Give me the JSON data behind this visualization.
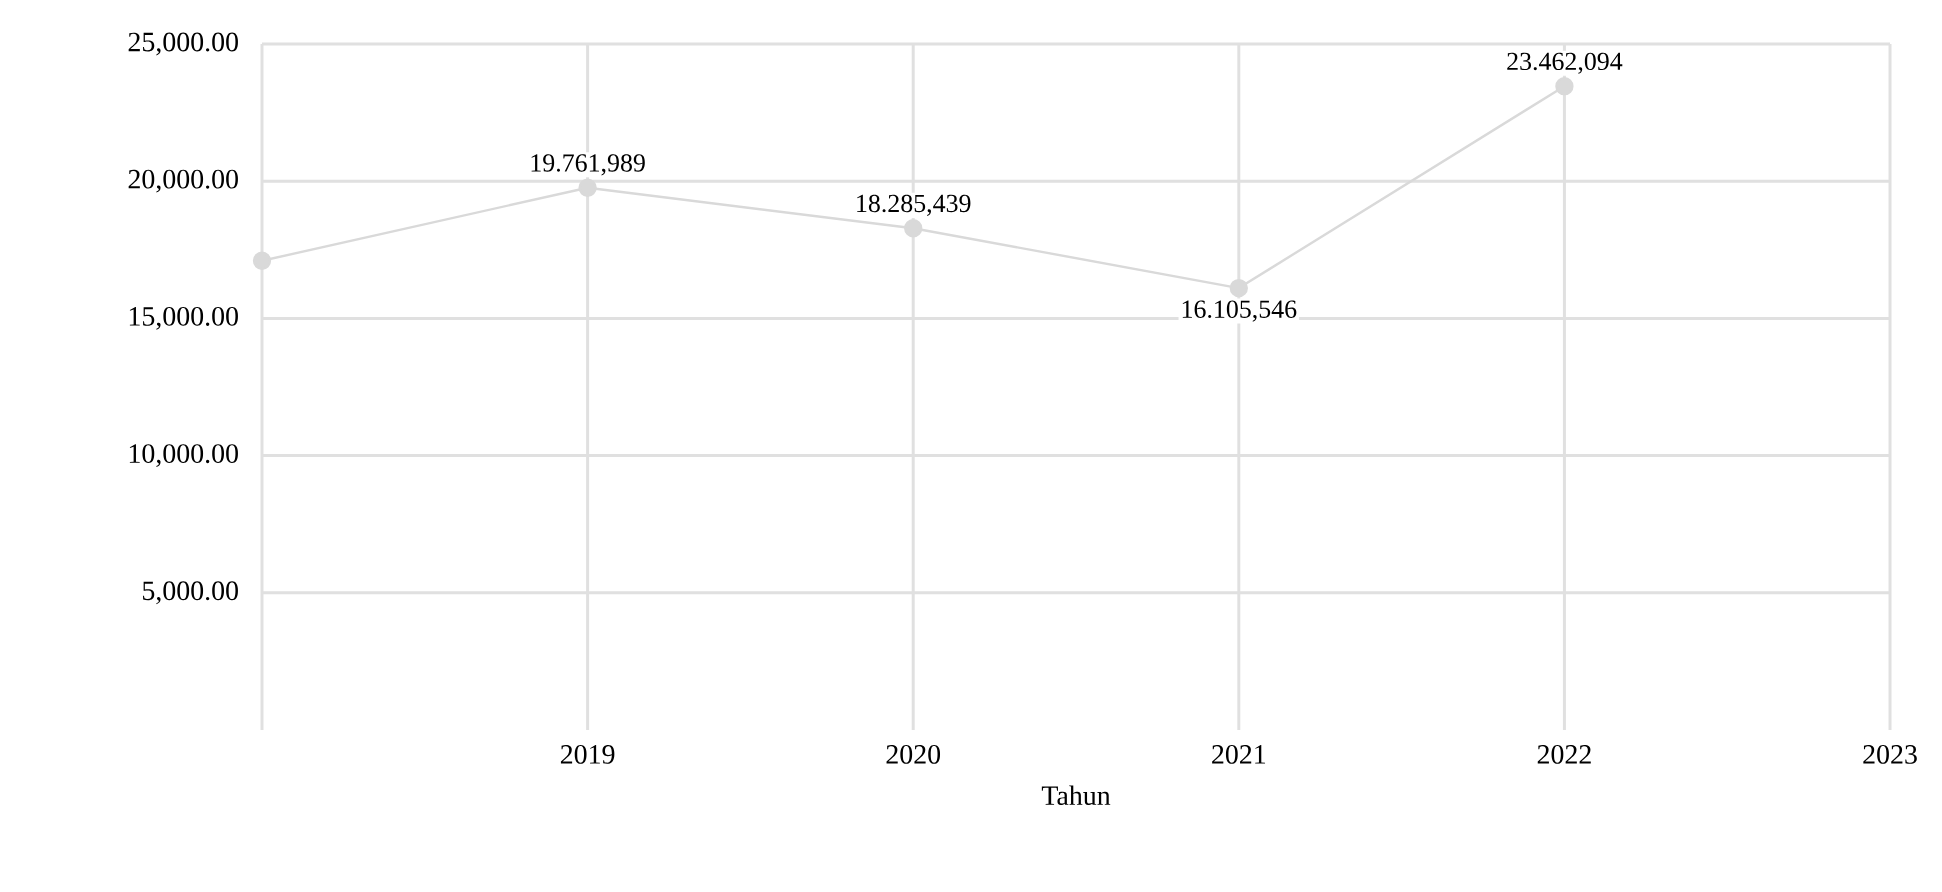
{
  "chart_data": {
    "type": "line",
    "xlabel": "Tahun",
    "x": [
      2018,
      2019,
      2020,
      2021,
      2022
    ],
    "series": [
      {
        "color": "#d9d9d9",
        "values": [
          17100,
          19761.989,
          18285.439,
          16105.546,
          23462.094
        ],
        "value_labels": [
          null,
          "19.761,989",
          "18.285,439",
          "16.105,546",
          "23.462,094"
        ]
      }
    ],
    "xlim": [
      2018,
      2023
    ],
    "xticks": [
      {
        "value": 2018,
        "label": null
      },
      2019,
      2020,
      2021,
      2022,
      2023
    ],
    "ylim": [
      0,
      25000
    ],
    "yticks": [
      {
        "value": 5000,
        "label": "5,000.00"
      },
      {
        "value": 10000,
        "label": "10,000.00"
      },
      {
        "value": 15000,
        "label": "15,000.00"
      },
      {
        "value": 20000,
        "label": "20,000.00"
      },
      {
        "value": 25000,
        "label": "25,000.00"
      }
    ],
    "grid": true,
    "marker": "circle",
    "line_style": "solid"
  }
}
